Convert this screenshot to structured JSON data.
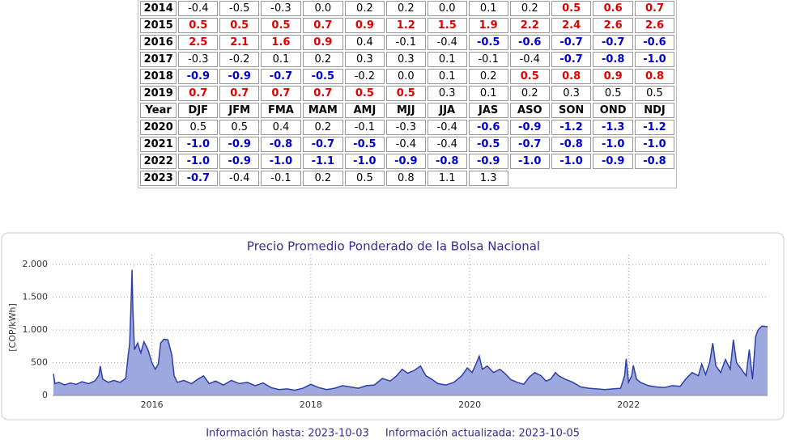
{
  "table": {
    "rows": [
      {
        "cells": [
          "2014",
          "-0.4",
          "-0.5",
          "-0.3",
          "0.0",
          "0.2",
          "0.2",
          "0.0",
          "0.1",
          "0.2",
          "0.5",
          "0.6",
          "0.7"
        ],
        "colors": [
          "#000000",
          "#000000",
          "#000000",
          "#000000",
          "#000000",
          "#000000",
          "#000000",
          "#000000",
          "#000000",
          "#000000",
          "#e00000",
          "#e00000",
          "#e00000"
        ]
      },
      {
        "cells": [
          "2015",
          "0.5",
          "0.5",
          "0.5",
          "0.7",
          "0.9",
          "1.2",
          "1.5",
          "1.9",
          "2.2",
          "2.4",
          "2.6",
          "2.6"
        ],
        "colors": [
          "#000000",
          "#e00000",
          "#e00000",
          "#e00000",
          "#e00000",
          "#e00000",
          "#e00000",
          "#e00000",
          "#e00000",
          "#e00000",
          "#e00000",
          "#e00000",
          "#e00000"
        ]
      },
      {
        "cells": [
          "2016",
          "2.5",
          "2.1",
          "1.6",
          "0.9",
          "0.4",
          "-0.1",
          "-0.4",
          "-0.5",
          "-0.6",
          "-0.7",
          "-0.7",
          "-0.6"
        ],
        "colors": [
          "#000000",
          "#e00000",
          "#e00000",
          "#e00000",
          "#e00000",
          "#000000",
          "#000000",
          "#000000",
          "#0000cc",
          "#0000cc",
          "#0000cc",
          "#0000cc",
          "#0000cc"
        ]
      },
      {
        "cells": [
          "2017",
          "-0.3",
          "-0.2",
          "0.1",
          "0.2",
          "0.3",
          "0.3",
          "0.1",
          "-0.1",
          "-0.4",
          "-0.7",
          "-0.8",
          "-1.0"
        ],
        "colors": [
          "#000000",
          "#000000",
          "#000000",
          "#000000",
          "#000000",
          "#000000",
          "#000000",
          "#000000",
          "#000000",
          "#000000",
          "#0000cc",
          "#0000cc",
          "#0000cc"
        ]
      },
      {
        "cells": [
          "2018",
          "-0.9",
          "-0.9",
          "-0.7",
          "-0.5",
          "-0.2",
          "0.0",
          "0.1",
          "0.2",
          "0.5",
          "0.8",
          "0.9",
          "0.8"
        ],
        "colors": [
          "#000000",
          "#0000cc",
          "#0000cc",
          "#0000cc",
          "#0000cc",
          "#000000",
          "#000000",
          "#000000",
          "#000000",
          "#e00000",
          "#e00000",
          "#e00000",
          "#e00000"
        ]
      },
      {
        "cells": [
          "2019",
          "0.7",
          "0.7",
          "0.7",
          "0.7",
          "0.5",
          "0.5",
          "0.3",
          "0.1",
          "0.2",
          "0.3",
          "0.5",
          "0.5"
        ],
        "colors": [
          "#000000",
          "#e00000",
          "#e00000",
          "#e00000",
          "#e00000",
          "#e00000",
          "#e00000",
          "#000000",
          "#000000",
          "#000000",
          "#000000",
          "#000000",
          "#000000"
        ]
      },
      {
        "cells": [
          "Year",
          "DJF",
          "JFM",
          "FMA",
          "MAM",
          "AMJ",
          "MJJ",
          "JJA",
          "JAS",
          "ASO",
          "SON",
          "OND",
          "NDJ"
        ]
      },
      {
        "cells": [
          "2020",
          "0.5",
          "0.5",
          "0.4",
          "0.2",
          "-0.1",
          "-0.3",
          "-0.4",
          "-0.6",
          "-0.9",
          "-1.2",
          "-1.3",
          "-1.2"
        ],
        "colors": [
          "#000000",
          "#000000",
          "#000000",
          "#000000",
          "#000000",
          "#000000",
          "#000000",
          "#000000",
          "#0000cc",
          "#0000cc",
          "#0000cc",
          "#0000cc",
          "#0000cc"
        ]
      },
      {
        "cells": [
          "2021",
          "-1.0",
          "-0.9",
          "-0.8",
          "-0.7",
          "-0.5",
          "-0.4",
          "-0.4",
          "-0.5",
          "-0.7",
          "-0.8",
          "-1.0",
          "-1.0"
        ],
        "colors": [
          "#000000",
          "#0000cc",
          "#0000cc",
          "#0000cc",
          "#0000cc",
          "#0000cc",
          "#000000",
          "#000000",
          "#0000cc",
          "#0000cc",
          "#0000cc",
          "#0000cc",
          "#0000cc"
        ]
      },
      {
        "cells": [
          "2022",
          "-1.0",
          "-0.9",
          "-1.0",
          "-1.1",
          "-1.0",
          "-0.9",
          "-0.8",
          "-0.9",
          "-1.0",
          "-1.0",
          "-0.9",
          "-0.8"
        ],
        "colors": [
          "#000000",
          "#0000cc",
          "#0000cc",
          "#0000cc",
          "#0000cc",
          "#0000cc",
          "#0000cc",
          "#0000cc",
          "#0000cc",
          "#0000cc",
          "#0000cc",
          "#0000cc",
          "#0000cc"
        ]
      },
      {
        "cells": [
          "2023",
          "-0.7",
          "-0.4",
          "-0.1",
          "0.2",
          "0.5",
          "0.8",
          "1.1",
          "1.3"
        ],
        "colors": [
          "#000000",
          "#0000cc",
          "#000000",
          "#000000",
          "#000000",
          "#000000",
          "#000000",
          "#000000",
          "#000000"
        ]
      }
    ]
  },
  "chart_data": {
    "type": "area",
    "title": "Precio Promedio Ponderado de la Bolsa Nacional",
    "y_label": "[COP/kWh]",
    "color": "#2f3fa8",
    "fill": "#9da8de",
    "x": [
      2014.76,
      2014.78,
      2014.83,
      2014.9,
      2014.97,
      2015.05,
      2015.12,
      2015.2,
      2015.28,
      2015.33,
      2015.35,
      2015.38,
      2015.45,
      2015.52,
      2015.6,
      2015.67,
      2015.7,
      2015.72,
      2015.74,
      2015.75,
      2015.76,
      2015.78,
      2015.82,
      2015.86,
      2015.9,
      2015.95,
      2016.0,
      2016.04,
      2016.08,
      2016.11,
      2016.15,
      2016.2,
      2016.25,
      2016.28,
      2016.32,
      2016.4,
      2016.5,
      2016.58,
      2016.65,
      2016.72,
      2016.8,
      2016.9,
      2017.0,
      2017.1,
      2017.2,
      2017.3,
      2017.4,
      2017.5,
      2017.6,
      2017.7,
      2017.8,
      2017.9,
      2018.0,
      2018.1,
      2018.2,
      2018.3,
      2018.4,
      2018.5,
      2018.6,
      2018.7,
      2018.8,
      2018.9,
      2019.0,
      2019.08,
      2019.15,
      2019.22,
      2019.3,
      2019.38,
      2019.45,
      2019.52,
      2019.6,
      2019.7,
      2019.8,
      2019.9,
      2019.97,
      2020.03,
      2020.08,
      2020.12,
      2020.16,
      2020.22,
      2020.3,
      2020.38,
      2020.45,
      2020.52,
      2020.6,
      2020.68,
      2020.75,
      2020.82,
      2020.9,
      2020.96,
      2021.02,
      2021.08,
      2021.12,
      2021.2,
      2021.3,
      2021.4,
      2021.5,
      2021.6,
      2021.7,
      2021.8,
      2021.9,
      2021.95,
      2021.97,
      2022.0,
      2022.04,
      2022.06,
      2022.1,
      2022.15,
      2022.25,
      2022.35,
      2022.45,
      2022.55,
      2022.65,
      2022.72,
      2022.8,
      2022.88,
      2022.92,
      2022.97,
      2023.02,
      2023.06,
      2023.1,
      2023.16,
      2023.22,
      2023.28,
      2023.32,
      2023.36,
      2023.42,
      2023.48,
      2023.52,
      2023.56,
      2023.6,
      2023.63,
      2023.68,
      2023.75
    ],
    "values": [
      330,
      180,
      200,
      160,
      190,
      170,
      210,
      180,
      220,
      300,
      450,
      250,
      200,
      230,
      200,
      260,
      600,
      800,
      1500,
      1920,
      1300,
      700,
      800,
      650,
      820,
      700,
      500,
      400,
      480,
      800,
      860,
      850,
      620,
      300,
      200,
      230,
      180,
      250,
      300,
      180,
      220,
      160,
      230,
      180,
      200,
      150,
      190,
      120,
      90,
      100,
      80,
      110,
      170,
      120,
      90,
      110,
      150,
      130,
      110,
      150,
      160,
      260,
      220,
      300,
      400,
      340,
      380,
      450,
      300,
      250,
      180,
      160,
      200,
      300,
      420,
      350,
      480,
      600,
      400,
      450,
      350,
      400,
      330,
      240,
      200,
      170,
      280,
      350,
      300,
      220,
      250,
      350,
      300,
      250,
      200,
      130,
      110,
      100,
      90,
      100,
      110,
      300,
      560,
      200,
      300,
      460,
      250,
      200,
      150,
      130,
      120,
      150,
      140,
      250,
      350,
      300,
      480,
      320,
      500,
      800,
      450,
      350,
      550,
      400,
      850,
      500,
      400,
      300,
      700,
      250,
      900,
      1000,
      1060,
      1050
    ],
    "xlim": [
      2014.75,
      2023.75
    ],
    "xticks": [
      2016,
      2018,
      2020,
      2022
    ],
    "ylim": [
      0,
      2150
    ],
    "yticks": [
      0,
      500,
      {
        "value": 1000,
        "label": "1.000"
      },
      {
        "value": 1500,
        "label": "1.500"
      },
      {
        "value": 2000,
        "label": "2.000"
      }
    ],
    "grid": true
  },
  "footer": {
    "left": "Información hasta: 2023-10-03",
    "right": "Información actualizada: 2023-10-05"
  }
}
